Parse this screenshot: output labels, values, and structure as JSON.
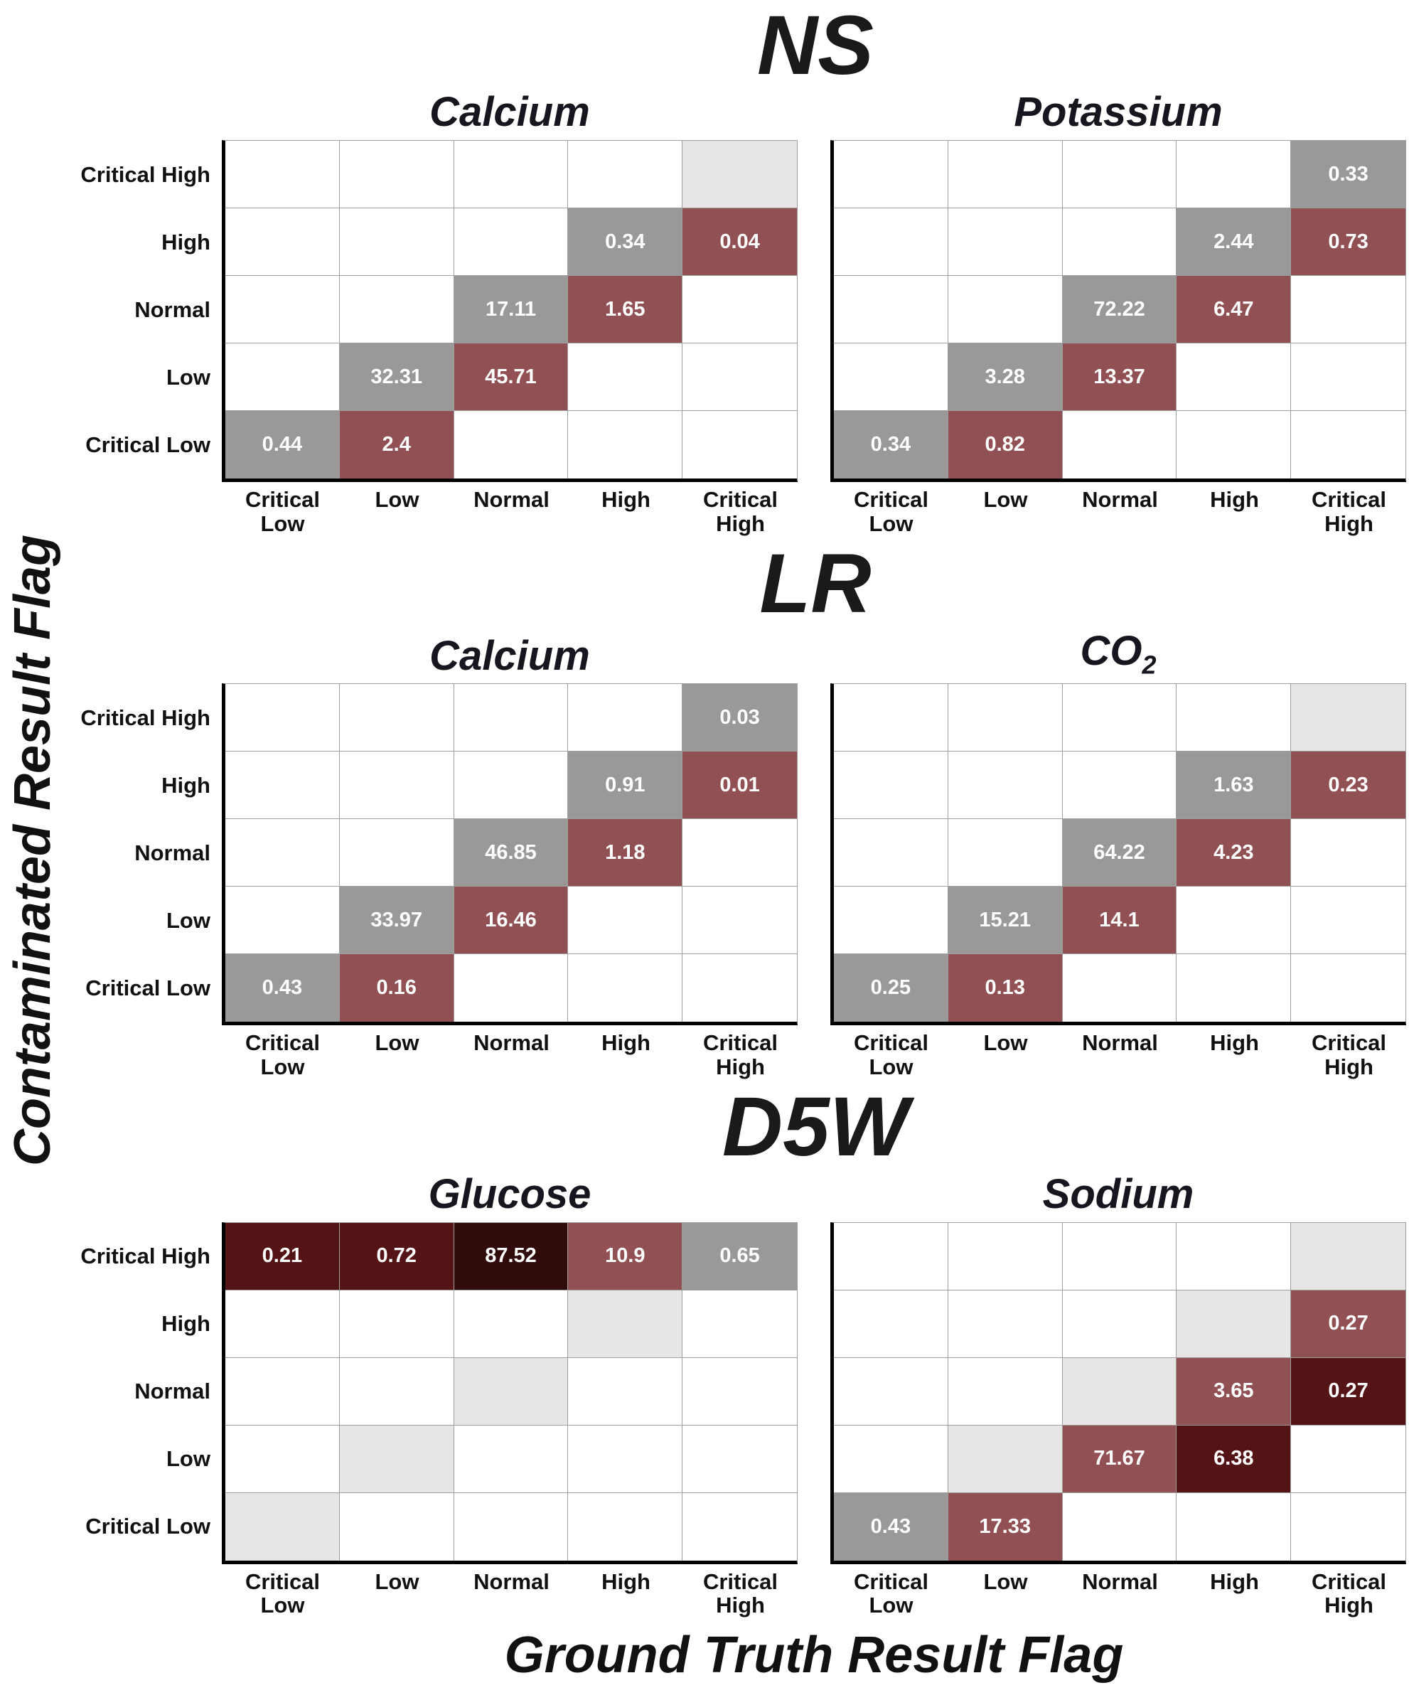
{
  "figure": {
    "y_axis_label": "Contaminated Result Flag",
    "x_axis_label": "Ground Truth Result Flag"
  },
  "groups": [
    {
      "title": "NS"
    },
    {
      "title": "LR"
    },
    {
      "title": "D5W"
    }
  ],
  "ticks": {
    "x": [
      "Critical\nLow",
      "Low",
      "Normal",
      "High",
      "Critical\nHigh"
    ],
    "y": [
      "Critical High",
      "High",
      "Normal",
      "Low",
      "Critical Low"
    ]
  },
  "colors": {
    "empty": "#ffffff",
    "near_zero": "#e7e5e5",
    "diagonal": "#9a999a",
    "off1": "#915154",
    "off2": "#541416",
    "off3": "#310a0b",
    "value_text": "#ffffff",
    "grid_line": "#9e9e9e",
    "axis_line": "#000000",
    "subtitle_text": "#16161f",
    "title_text": "#1a1a1a"
  },
  "chart_data": [
    {
      "type": "heatmap",
      "group": "NS",
      "analyte": "Calcium",
      "analyte_sub": "",
      "x_categories": [
        "Critical Low",
        "Low",
        "Normal",
        "High",
        "Critical High"
      ],
      "y_categories_top_to_bottom": [
        "Critical High",
        "High",
        "Normal",
        "Low",
        "Critical Low"
      ],
      "values": [
        [
          null,
          null,
          null,
          null,
          0
        ],
        [
          null,
          null,
          null,
          0.34,
          0.04
        ],
        [
          null,
          null,
          17.11,
          1.65,
          null
        ],
        [
          null,
          32.31,
          45.71,
          null,
          null
        ],
        [
          0.44,
          2.4,
          null,
          null,
          null
        ]
      ],
      "cells": [
        [
          [
            "",
            "empty"
          ],
          [
            "",
            "empty"
          ],
          [
            "",
            "empty"
          ],
          [
            "",
            "empty"
          ],
          [
            "",
            "near_zero"
          ]
        ],
        [
          [
            "",
            "empty"
          ],
          [
            "",
            "empty"
          ],
          [
            "",
            "empty"
          ],
          [
            "0.34",
            "diagonal"
          ],
          [
            "0.04",
            "off1"
          ]
        ],
        [
          [
            "",
            "empty"
          ],
          [
            "",
            "empty"
          ],
          [
            "17.11",
            "diagonal"
          ],
          [
            "1.65",
            "off1"
          ],
          [
            "",
            "empty"
          ]
        ],
        [
          [
            "",
            "empty"
          ],
          [
            "32.31",
            "diagonal"
          ],
          [
            "45.71",
            "off1"
          ],
          [
            "",
            "empty"
          ],
          [
            "",
            "empty"
          ]
        ],
        [
          [
            "0.44",
            "diagonal"
          ],
          [
            "2.4",
            "off1"
          ],
          [
            "",
            "empty"
          ],
          [
            "",
            "empty"
          ],
          [
            "",
            "empty"
          ]
        ]
      ]
    },
    {
      "type": "heatmap",
      "group": "NS",
      "analyte": "Potassium",
      "analyte_sub": "",
      "x_categories": [
        "Critical Low",
        "Low",
        "Normal",
        "High",
        "Critical High"
      ],
      "y_categories_top_to_bottom": [
        "Critical High",
        "High",
        "Normal",
        "Low",
        "Critical Low"
      ],
      "values": [
        [
          null,
          null,
          null,
          null,
          0.33
        ],
        [
          null,
          null,
          null,
          2.44,
          0.73
        ],
        [
          null,
          null,
          72.22,
          6.47,
          null
        ],
        [
          null,
          3.28,
          13.37,
          null,
          null
        ],
        [
          0.34,
          0.82,
          null,
          null,
          null
        ]
      ],
      "cells": [
        [
          [
            "",
            "empty"
          ],
          [
            "",
            "empty"
          ],
          [
            "",
            "empty"
          ],
          [
            "",
            "empty"
          ],
          [
            "0.33",
            "diagonal"
          ]
        ],
        [
          [
            "",
            "empty"
          ],
          [
            "",
            "empty"
          ],
          [
            "",
            "empty"
          ],
          [
            "2.44",
            "diagonal"
          ],
          [
            "0.73",
            "off1"
          ]
        ],
        [
          [
            "",
            "empty"
          ],
          [
            "",
            "empty"
          ],
          [
            "72.22",
            "diagonal"
          ],
          [
            "6.47",
            "off1"
          ],
          [
            "",
            "empty"
          ]
        ],
        [
          [
            "",
            "empty"
          ],
          [
            "3.28",
            "diagonal"
          ],
          [
            "13.37",
            "off1"
          ],
          [
            "",
            "empty"
          ],
          [
            "",
            "empty"
          ]
        ],
        [
          [
            "0.34",
            "diagonal"
          ],
          [
            "0.82",
            "off1"
          ],
          [
            "",
            "empty"
          ],
          [
            "",
            "empty"
          ],
          [
            "",
            "empty"
          ]
        ]
      ]
    },
    {
      "type": "heatmap",
      "group": "LR",
      "analyte": "Calcium",
      "analyte_sub": "",
      "x_categories": [
        "Critical Low",
        "Low",
        "Normal",
        "High",
        "Critical High"
      ],
      "y_categories_top_to_bottom": [
        "Critical High",
        "High",
        "Normal",
        "Low",
        "Critical Low"
      ],
      "values": [
        [
          null,
          null,
          null,
          null,
          0.03
        ],
        [
          null,
          null,
          null,
          0.91,
          0.01
        ],
        [
          null,
          null,
          46.85,
          1.18,
          null
        ],
        [
          null,
          33.97,
          16.46,
          null,
          null
        ],
        [
          0.43,
          0.16,
          null,
          null,
          null
        ]
      ],
      "cells": [
        [
          [
            "",
            "empty"
          ],
          [
            "",
            "empty"
          ],
          [
            "",
            "empty"
          ],
          [
            "",
            "empty"
          ],
          [
            "0.03",
            "diagonal"
          ]
        ],
        [
          [
            "",
            "empty"
          ],
          [
            "",
            "empty"
          ],
          [
            "",
            "empty"
          ],
          [
            "0.91",
            "diagonal"
          ],
          [
            "0.01",
            "off1"
          ]
        ],
        [
          [
            "",
            "empty"
          ],
          [
            "",
            "empty"
          ],
          [
            "46.85",
            "diagonal"
          ],
          [
            "1.18",
            "off1"
          ],
          [
            "",
            "empty"
          ]
        ],
        [
          [
            "",
            "empty"
          ],
          [
            "33.97",
            "diagonal"
          ],
          [
            "16.46",
            "off1"
          ],
          [
            "",
            "empty"
          ],
          [
            "",
            "empty"
          ]
        ],
        [
          [
            "0.43",
            "diagonal"
          ],
          [
            "0.16",
            "off1"
          ],
          [
            "",
            "empty"
          ],
          [
            "",
            "empty"
          ],
          [
            "",
            "empty"
          ]
        ]
      ]
    },
    {
      "type": "heatmap",
      "group": "LR",
      "analyte": "CO",
      "analyte_sub": "2",
      "x_categories": [
        "Critical Low",
        "Low",
        "Normal",
        "High",
        "Critical High"
      ],
      "y_categories_top_to_bottom": [
        "Critical High",
        "High",
        "Normal",
        "Low",
        "Critical Low"
      ],
      "values": [
        [
          null,
          null,
          null,
          null,
          0
        ],
        [
          null,
          null,
          null,
          1.63,
          0.23
        ],
        [
          null,
          null,
          64.22,
          4.23,
          null
        ],
        [
          null,
          15.21,
          14.1,
          null,
          null
        ],
        [
          0.25,
          0.13,
          null,
          null,
          null
        ]
      ],
      "cells": [
        [
          [
            "",
            "empty"
          ],
          [
            "",
            "empty"
          ],
          [
            "",
            "empty"
          ],
          [
            "",
            "empty"
          ],
          [
            "",
            "near_zero"
          ]
        ],
        [
          [
            "",
            "empty"
          ],
          [
            "",
            "empty"
          ],
          [
            "",
            "empty"
          ],
          [
            "1.63",
            "diagonal"
          ],
          [
            "0.23",
            "off1"
          ]
        ],
        [
          [
            "",
            "empty"
          ],
          [
            "",
            "empty"
          ],
          [
            "64.22",
            "diagonal"
          ],
          [
            "4.23",
            "off1"
          ],
          [
            "",
            "empty"
          ]
        ],
        [
          [
            "",
            "empty"
          ],
          [
            "15.21",
            "diagonal"
          ],
          [
            "14.1",
            "off1"
          ],
          [
            "",
            "empty"
          ],
          [
            "",
            "empty"
          ]
        ],
        [
          [
            "0.25",
            "diagonal"
          ],
          [
            "0.13",
            "off1"
          ],
          [
            "",
            "empty"
          ],
          [
            "",
            "empty"
          ],
          [
            "",
            "empty"
          ]
        ]
      ]
    },
    {
      "type": "heatmap",
      "group": "D5W",
      "analyte": "Glucose",
      "analyte_sub": "",
      "x_categories": [
        "Critical Low",
        "Low",
        "Normal",
        "High",
        "Critical High"
      ],
      "y_categories_top_to_bottom": [
        "Critical High",
        "High",
        "Normal",
        "Low",
        "Critical Low"
      ],
      "values": [
        [
          0.21,
          0.72,
          87.52,
          10.9,
          0.65
        ],
        [
          null,
          null,
          null,
          0,
          null
        ],
        [
          null,
          null,
          0,
          null,
          null
        ],
        [
          null,
          0,
          null,
          null,
          null
        ],
        [
          0,
          null,
          null,
          null,
          null
        ]
      ],
      "cells": [
        [
          [
            "0.21",
            "off2"
          ],
          [
            "0.72",
            "off2"
          ],
          [
            "87.52",
            "off3"
          ],
          [
            "10.9",
            "off1"
          ],
          [
            "0.65",
            "diagonal"
          ]
        ],
        [
          [
            "",
            "empty"
          ],
          [
            "",
            "empty"
          ],
          [
            "",
            "empty"
          ],
          [
            "",
            "near_zero"
          ],
          [
            "",
            "empty"
          ]
        ],
        [
          [
            "",
            "empty"
          ],
          [
            "",
            "empty"
          ],
          [
            "",
            "near_zero"
          ],
          [
            "",
            "empty"
          ],
          [
            "",
            "empty"
          ]
        ],
        [
          [
            "",
            "empty"
          ],
          [
            "",
            "near_zero"
          ],
          [
            "",
            "empty"
          ],
          [
            "",
            "empty"
          ],
          [
            "",
            "empty"
          ]
        ],
        [
          [
            "",
            "near_zero"
          ],
          [
            "",
            "empty"
          ],
          [
            "",
            "empty"
          ],
          [
            "",
            "empty"
          ],
          [
            "",
            "empty"
          ]
        ]
      ]
    },
    {
      "type": "heatmap",
      "group": "D5W",
      "analyte": "Sodium",
      "analyte_sub": "",
      "x_categories": [
        "Critical Low",
        "Low",
        "Normal",
        "High",
        "Critical High"
      ],
      "y_categories_top_to_bottom": [
        "Critical High",
        "High",
        "Normal",
        "Low",
        "Critical Low"
      ],
      "values": [
        [
          null,
          null,
          null,
          null,
          0
        ],
        [
          null,
          null,
          null,
          0,
          0.27
        ],
        [
          null,
          null,
          0,
          3.65,
          0.27
        ],
        [
          null,
          0,
          71.67,
          6.38,
          null
        ],
        [
          0.43,
          17.33,
          null,
          null,
          null
        ]
      ],
      "cells": [
        [
          [
            "",
            "empty"
          ],
          [
            "",
            "empty"
          ],
          [
            "",
            "empty"
          ],
          [
            "",
            "empty"
          ],
          [
            "",
            "near_zero"
          ]
        ],
        [
          [
            "",
            "empty"
          ],
          [
            "",
            "empty"
          ],
          [
            "",
            "empty"
          ],
          [
            "",
            "near_zero"
          ],
          [
            "0.27",
            "off1"
          ]
        ],
        [
          [
            "",
            "empty"
          ],
          [
            "",
            "empty"
          ],
          [
            "",
            "near_zero"
          ],
          [
            "3.65",
            "off1"
          ],
          [
            "0.27",
            "off2"
          ]
        ],
        [
          [
            "",
            "empty"
          ],
          [
            "",
            "near_zero"
          ],
          [
            "71.67",
            "off1"
          ],
          [
            "6.38",
            "off2"
          ],
          [
            "",
            "empty"
          ]
        ],
        [
          [
            "0.43",
            "diagonal"
          ],
          [
            "17.33",
            "off1"
          ],
          [
            "",
            "empty"
          ],
          [
            "",
            "empty"
          ],
          [
            "",
            "empty"
          ]
        ]
      ]
    }
  ]
}
